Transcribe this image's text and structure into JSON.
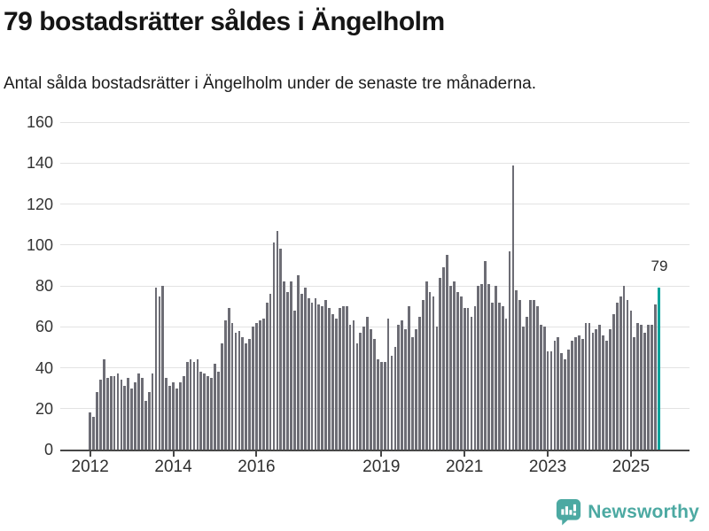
{
  "header": {
    "title": "79 bostadsrätter såldes i Ängelholm",
    "subtitle": "Antal sålda bostadsrätter i Ängelholm under de senaste tre månaderna."
  },
  "chart_data": {
    "type": "bar",
    "title": "79 bostadsrätter såldes i Ängelholm",
    "subtitle": "Antal sålda bostadsrätter i Ängelholm under de senaste tre månaderna.",
    "x_start": "2012-01",
    "x_frequency": "monthly",
    "values": [
      18,
      16,
      28,
      34,
      44,
      35,
      36,
      36,
      37,
      34,
      31,
      35,
      30,
      33,
      37,
      35,
      24,
      28,
      37,
      79,
      75,
      80,
      35,
      31,
      33,
      30,
      33,
      36,
      43,
      44,
      43,
      44,
      38,
      37,
      36,
      35,
      42,
      38,
      52,
      63,
      69,
      62,
      57,
      58,
      55,
      52,
      54,
      60,
      62,
      63,
      64,
      72,
      76,
      101,
      107,
      98,
      82,
      77,
      82,
      68,
      85,
      76,
      79,
      74,
      72,
      74,
      71,
      70,
      73,
      69,
      66,
      64,
      69,
      70,
      70,
      61,
      63,
      52,
      57,
      60,
      65,
      59,
      54,
      44,
      43,
      43,
      64,
      46,
      50,
      61,
      63,
      59,
      70,
      55,
      59,
      65,
      73,
      82,
      77,
      75,
      60,
      84,
      89,
      95,
      80,
      82,
      77,
      75,
      69,
      69,
      65,
      70,
      80,
      81,
      92,
      81,
      72,
      80,
      72,
      70,
      64,
      97,
      139,
      78,
      73,
      60,
      65,
      73,
      73,
      70,
      61,
      60,
      48,
      48,
      53,
      55,
      47,
      44,
      49,
      53,
      55,
      56,
      54,
      62,
      62,
      57,
      59,
      61,
      56,
      53,
      59,
      66,
      72,
      75,
      80,
      73,
      68,
      55,
      62,
      61,
      57,
      61,
      61,
      71,
      79
    ],
    "highlight": {
      "index": 164,
      "value": 79,
      "label": "79"
    },
    "x_tick_labels": [
      "2012",
      "2014",
      "2016",
      "2019",
      "2021",
      "2023",
      "2025"
    ],
    "x_tick_start_year": 2012,
    "y_ticks": [
      0,
      20,
      40,
      60,
      80,
      100,
      120,
      140,
      160
    ],
    "ylim": [
      0,
      160
    ],
    "grid": true,
    "legend": false
  },
  "footer": {
    "brand_label": "Newsworthy"
  },
  "colors": {
    "bar": "#6d6d75",
    "highlight": "#00a39b",
    "brand": "#4ca9a2",
    "grid": "#e3e3e3",
    "axis": "#474747"
  }
}
